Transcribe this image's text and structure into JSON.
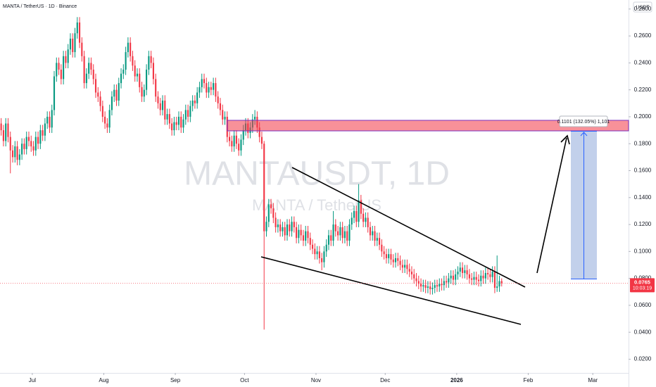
{
  "chart_data": {
    "type": "candlestick",
    "title": "MANTA / TetherUS · 1D · Binance",
    "watermark": "MANTAUSDT, 1D",
    "watermark_subtitle": "MANTA / TetherUS",
    "currency": "USDT",
    "countdown": "10:03:19",
    "measure_label": "0.1101 (132.05%) 1,101",
    "up_color": "#089981",
    "down_color": "#f23645",
    "grid": false,
    "xlim": [
      0,
      272.5
    ],
    "xticks": [
      {
        "value": 14,
        "label": "Jul"
      },
      {
        "value": 45,
        "label": "Aug"
      },
      {
        "value": 76,
        "label": "Sep"
      },
      {
        "value": 106,
        "label": "Oct"
      },
      {
        "value": 137,
        "label": "Nov"
      },
      {
        "value": 167,
        "label": "Dec"
      },
      {
        "value": 198,
        "label": "2026"
      },
      {
        "value": 229,
        "label": "Feb"
      },
      {
        "value": 257,
        "label": "Mar"
      }
    ],
    "ylim": [
      0.0098,
      0.2867
    ],
    "yticks": [
      {
        "value": 0.28,
        "label": "0.2800"
      },
      {
        "value": 0.26,
        "label": "0.2600"
      },
      {
        "value": 0.24,
        "label": "0.2400"
      },
      {
        "value": 0.22,
        "label": "0.2200"
      },
      {
        "value": 0.2,
        "label": "0.2000"
      },
      {
        "value": 0.18,
        "label": "0.1800"
      },
      {
        "value": 0.16,
        "label": "0.1600"
      },
      {
        "value": 0.14,
        "label": "0.1400"
      },
      {
        "value": 0.12,
        "label": "0.1200"
      },
      {
        "value": 0.1,
        "label": "0.1000"
      },
      {
        "value": 0.08,
        "label": "0.0800"
      },
      {
        "value": 0.06,
        "label": "0.0600"
      },
      {
        "value": 0.04,
        "label": "0.0400"
      },
      {
        "value": 0.02,
        "label": "0.0200"
      }
    ],
    "open": [
      0.195,
      0.19,
      0.182,
      0.195,
      0.185,
      0.175,
      0.17,
      0.178,
      0.168,
      0.172,
      0.18,
      0.176,
      0.185,
      0.182,
      0.178,
      0.175,
      0.185,
      0.18,
      0.19,
      0.186,
      0.195,
      0.2,
      0.192,
      0.205,
      0.23,
      0.24,
      0.235,
      0.228,
      0.245,
      0.24,
      0.25,
      0.258,
      0.248,
      0.262,
      0.27,
      0.255,
      0.245,
      0.225,
      0.232,
      0.24,
      0.235,
      0.228,
      0.218,
      0.215,
      0.208,
      0.2,
      0.195,
      0.192,
      0.205,
      0.215,
      0.22,
      0.212,
      0.225,
      0.232,
      0.235,
      0.248,
      0.255,
      0.245,
      0.238,
      0.23,
      0.232,
      0.222,
      0.215,
      0.22,
      0.235,
      0.245,
      0.24,
      0.228,
      0.215,
      0.21,
      0.205,
      0.212,
      0.198,
      0.202,
      0.195,
      0.19,
      0.196,
      0.194,
      0.2,
      0.192,
      0.198,
      0.205,
      0.2,
      0.208,
      0.212,
      0.21,
      0.218,
      0.222,
      0.228,
      0.225,
      0.218,
      0.222,
      0.22,
      0.225,
      0.215,
      0.21,
      0.205,
      0.198,
      0.2,
      0.185,
      0.182,
      0.178,
      0.186,
      0.18,
      0.175,
      0.183,
      0.19,
      0.195,
      0.188,
      0.192,
      0.198,
      0.2,
      0.192,
      0.185,
      0.18,
      0.115,
      0.122,
      0.135,
      0.132,
      0.125,
      0.118,
      0.12,
      0.115,
      0.118,
      0.112,
      0.12,
      0.115,
      0.122,
      0.118,
      0.11,
      0.116,
      0.112,
      0.108,
      0.115,
      0.11,
      0.105,
      0.102,
      0.098,
      0.1,
      0.095,
      0.092,
      0.1,
      0.105,
      0.112,
      0.108,
      0.12,
      0.115,
      0.112,
      0.118,
      0.11,
      0.115,
      0.108,
      0.12,
      0.125,
      0.13,
      0.122,
      0.138,
      0.128,
      0.122,
      0.125,
      0.118,
      0.112,
      0.115,
      0.108,
      0.11,
      0.105,
      0.1,
      0.098,
      0.095,
      0.098,
      0.094,
      0.092,
      0.095,
      0.093,
      0.09,
      0.088,
      0.09,
      0.087,
      0.085,
      0.083,
      0.08,
      0.078,
      0.076,
      0.074,
      0.075,
      0.073,
      0.074,
      0.072,
      0.073,
      0.075,
      0.074,
      0.076,
      0.075,
      0.078,
      0.077,
      0.08,
      0.082,
      0.079,
      0.083,
      0.085,
      0.088,
      0.084,
      0.086,
      0.083,
      0.08,
      0.079,
      0.081,
      0.079,
      0.078,
      0.082,
      0.08,
      0.084,
      0.083,
      0.081,
      0.085,
      0.073,
      0.074,
      0.078
    ],
    "high": [
      0.199,
      0.194,
      0.199,
      0.199,
      0.189,
      0.179,
      0.182,
      0.182,
      0.176,
      0.184,
      0.184,
      0.189,
      0.189,
      0.186,
      0.182,
      0.189,
      0.189,
      0.194,
      0.194,
      0.199,
      0.204,
      0.204,
      0.209,
      0.234,
      0.244,
      0.244,
      0.239,
      0.249,
      0.249,
      0.254,
      0.262,
      0.262,
      0.266,
      0.274,
      0.274,
      0.259,
      0.249,
      0.236,
      0.244,
      0.244,
      0.239,
      0.232,
      0.222,
      0.219,
      0.212,
      0.204,
      0.199,
      0.209,
      0.219,
      0.224,
      0.224,
      0.229,
      0.236,
      0.239,
      0.252,
      0.259,
      0.259,
      0.249,
      0.242,
      0.236,
      0.236,
      0.226,
      0.224,
      0.239,
      0.249,
      0.249,
      0.244,
      0.232,
      0.219,
      0.214,
      0.216,
      0.216,
      0.206,
      0.206,
      0.199,
      0.2,
      0.2,
      0.204,
      0.204,
      0.202,
      0.209,
      0.209,
      0.212,
      0.216,
      0.216,
      0.222,
      0.226,
      0.232,
      0.232,
      0.229,
      0.226,
      0.226,
      0.229,
      0.229,
      0.219,
      0.214,
      0.209,
      0.204,
      0.204,
      0.189,
      0.186,
      0.19,
      0.19,
      0.184,
      0.187,
      0.194,
      0.199,
      0.199,
      0.196,
      0.202,
      0.205,
      0.204,
      0.196,
      0.189,
      0.182,
      0.126,
      0.139,
      0.139,
      0.136,
      0.129,
      0.124,
      0.124,
      0.122,
      0.122,
      0.124,
      0.124,
      0.126,
      0.126,
      0.122,
      0.12,
      0.12,
      0.116,
      0.119,
      0.119,
      0.114,
      0.109,
      0.106,
      0.104,
      0.104,
      0.099,
      0.104,
      0.109,
      0.116,
      0.116,
      0.13,
      0.124,
      0.119,
      0.122,
      0.122,
      0.119,
      0.119,
      0.124,
      0.129,
      0.134,
      0.134,
      0.15,
      0.142,
      0.132,
      0.129,
      0.129,
      0.122,
      0.119,
      0.119,
      0.114,
      0.114,
      0.109,
      0.104,
      0.102,
      0.102,
      0.102,
      0.098,
      0.099,
      0.099,
      0.097,
      0.094,
      0.094,
      0.094,
      0.091,
      0.089,
      0.087,
      0.084,
      0.082,
      0.08,
      0.079,
      0.079,
      0.078,
      0.078,
      0.077,
      0.079,
      0.079,
      0.08,
      0.08,
      0.082,
      0.082,
      0.084,
      0.086,
      0.086,
      0.087,
      0.089,
      0.092,
      0.092,
      0.09,
      0.09,
      0.087,
      0.084,
      0.085,
      0.085,
      0.083,
      0.086,
      0.086,
      0.088,
      0.088,
      0.087,
      0.089,
      0.089,
      0.097,
      0.082,
      0.08
    ],
    "low": [
      0.186,
      0.178,
      0.178,
      0.181,
      0.158,
      0.166,
      0.166,
      0.164,
      0.164,
      0.168,
      0.172,
      0.172,
      0.178,
      0.174,
      0.171,
      0.171,
      0.176,
      0.176,
      0.182,
      0.182,
      0.191,
      0.188,
      0.188,
      0.201,
      0.226,
      0.231,
      0.224,
      0.224,
      0.236,
      0.236,
      0.246,
      0.244,
      0.244,
      0.258,
      0.251,
      0.241,
      0.221,
      0.221,
      0.228,
      0.231,
      0.224,
      0.214,
      0.211,
      0.204,
      0.196,
      0.191,
      0.188,
      0.188,
      0.201,
      0.211,
      0.208,
      0.208,
      0.221,
      0.228,
      0.231,
      0.244,
      0.241,
      0.234,
      0.226,
      0.226,
      0.218,
      0.211,
      0.211,
      0.216,
      0.231,
      0.236,
      0.224,
      0.211,
      0.206,
      0.201,
      0.201,
      0.194,
      0.194,
      0.191,
      0.186,
      0.186,
      0.19,
      0.19,
      0.188,
      0.188,
      0.194,
      0.196,
      0.196,
      0.204,
      0.206,
      0.206,
      0.214,
      0.218,
      0.221,
      0.214,
      0.214,
      0.216,
      0.216,
      0.211,
      0.206,
      0.201,
      0.194,
      0.194,
      0.181,
      0.178,
      0.174,
      0.174,
      0.176,
      0.171,
      0.171,
      0.179,
      0.186,
      0.184,
      0.184,
      0.188,
      0.194,
      0.188,
      0.181,
      0.176,
      0.042,
      0.111,
      0.118,
      0.128,
      0.121,
      0.114,
      0.114,
      0.111,
      0.111,
      0.108,
      0.108,
      0.111,
      0.111,
      0.114,
      0.106,
      0.106,
      0.108,
      0.104,
      0.104,
      0.106,
      0.101,
      0.098,
      0.094,
      0.094,
      0.091,
      0.086,
      0.088,
      0.096,
      0.101,
      0.104,
      0.104,
      0.111,
      0.108,
      0.108,
      0.106,
      0.106,
      0.104,
      0.104,
      0.116,
      0.121,
      0.118,
      0.118,
      0.124,
      0.118,
      0.118,
      0.114,
      0.108,
      0.108,
      0.104,
      0.104,
      0.101,
      0.096,
      0.094,
      0.091,
      0.091,
      0.09,
      0.088,
      0.088,
      0.089,
      0.086,
      0.084,
      0.084,
      0.083,
      0.081,
      0.079,
      0.076,
      0.074,
      0.072,
      0.07,
      0.07,
      0.069,
      0.069,
      0.068,
      0.068,
      0.069,
      0.07,
      0.07,
      0.071,
      0.071,
      0.073,
      0.073,
      0.076,
      0.075,
      0.075,
      0.079,
      0.081,
      0.08,
      0.08,
      0.079,
      0.076,
      0.075,
      0.075,
      0.075,
      0.074,
      0.074,
      0.076,
      0.076,
      0.079,
      0.077,
      0.077,
      0.069,
      0.07,
      0.07,
      0.074
    ],
    "close": [
      0.19,
      0.182,
      0.195,
      0.185,
      0.175,
      0.17,
      0.178,
      0.168,
      0.172,
      0.18,
      0.176,
      0.185,
      0.182,
      0.178,
      0.175,
      0.185,
      0.18,
      0.19,
      0.186,
      0.195,
      0.2,
      0.192,
      0.205,
      0.23,
      0.24,
      0.235,
      0.228,
      0.245,
      0.24,
      0.25,
      0.258,
      0.248,
      0.262,
      0.27,
      0.255,
      0.245,
      0.225,
      0.232,
      0.24,
      0.235,
      0.228,
      0.218,
      0.215,
      0.208,
      0.2,
      0.195,
      0.192,
      0.205,
      0.215,
      0.22,
      0.212,
      0.225,
      0.232,
      0.235,
      0.248,
      0.255,
      0.245,
      0.238,
      0.23,
      0.232,
      0.222,
      0.215,
      0.22,
      0.235,
      0.245,
      0.24,
      0.228,
      0.215,
      0.21,
      0.205,
      0.212,
      0.198,
      0.202,
      0.195,
      0.19,
      0.196,
      0.194,
      0.2,
      0.192,
      0.198,
      0.205,
      0.2,
      0.208,
      0.212,
      0.21,
      0.218,
      0.222,
      0.228,
      0.225,
      0.218,
      0.222,
      0.22,
      0.225,
      0.215,
      0.21,
      0.205,
      0.198,
      0.2,
      0.185,
      0.182,
      0.178,
      0.186,
      0.18,
      0.175,
      0.183,
      0.19,
      0.195,
      0.188,
      0.192,
      0.198,
      0.2,
      0.192,
      0.185,
      0.18,
      0.115,
      0.122,
      0.135,
      0.132,
      0.125,
      0.118,
      0.12,
      0.115,
      0.118,
      0.112,
      0.12,
      0.115,
      0.122,
      0.118,
      0.11,
      0.116,
      0.112,
      0.108,
      0.115,
      0.11,
      0.105,
      0.102,
      0.098,
      0.1,
      0.095,
      0.092,
      0.1,
      0.105,
      0.112,
      0.108,
      0.12,
      0.115,
      0.112,
      0.118,
      0.11,
      0.115,
      0.108,
      0.12,
      0.125,
      0.13,
      0.122,
      0.138,
      0.128,
      0.122,
      0.125,
      0.118,
      0.112,
      0.115,
      0.108,
      0.11,
      0.105,
      0.1,
      0.098,
      0.095,
      0.098,
      0.094,
      0.092,
      0.095,
      0.093,
      0.09,
      0.088,
      0.09,
      0.087,
      0.085,
      0.083,
      0.08,
      0.078,
      0.076,
      0.074,
      0.075,
      0.073,
      0.074,
      0.072,
      0.073,
      0.075,
      0.074,
      0.076,
      0.075,
      0.078,
      0.077,
      0.08,
      0.082,
      0.079,
      0.083,
      0.085,
      0.088,
      0.084,
      0.086,
      0.083,
      0.08,
      0.079,
      0.081,
      0.079,
      0.078,
      0.082,
      0.08,
      0.084,
      0.083,
      0.081,
      0.085,
      0.073,
      0.074,
      0.078,
      0.0765
    ]
  }
}
